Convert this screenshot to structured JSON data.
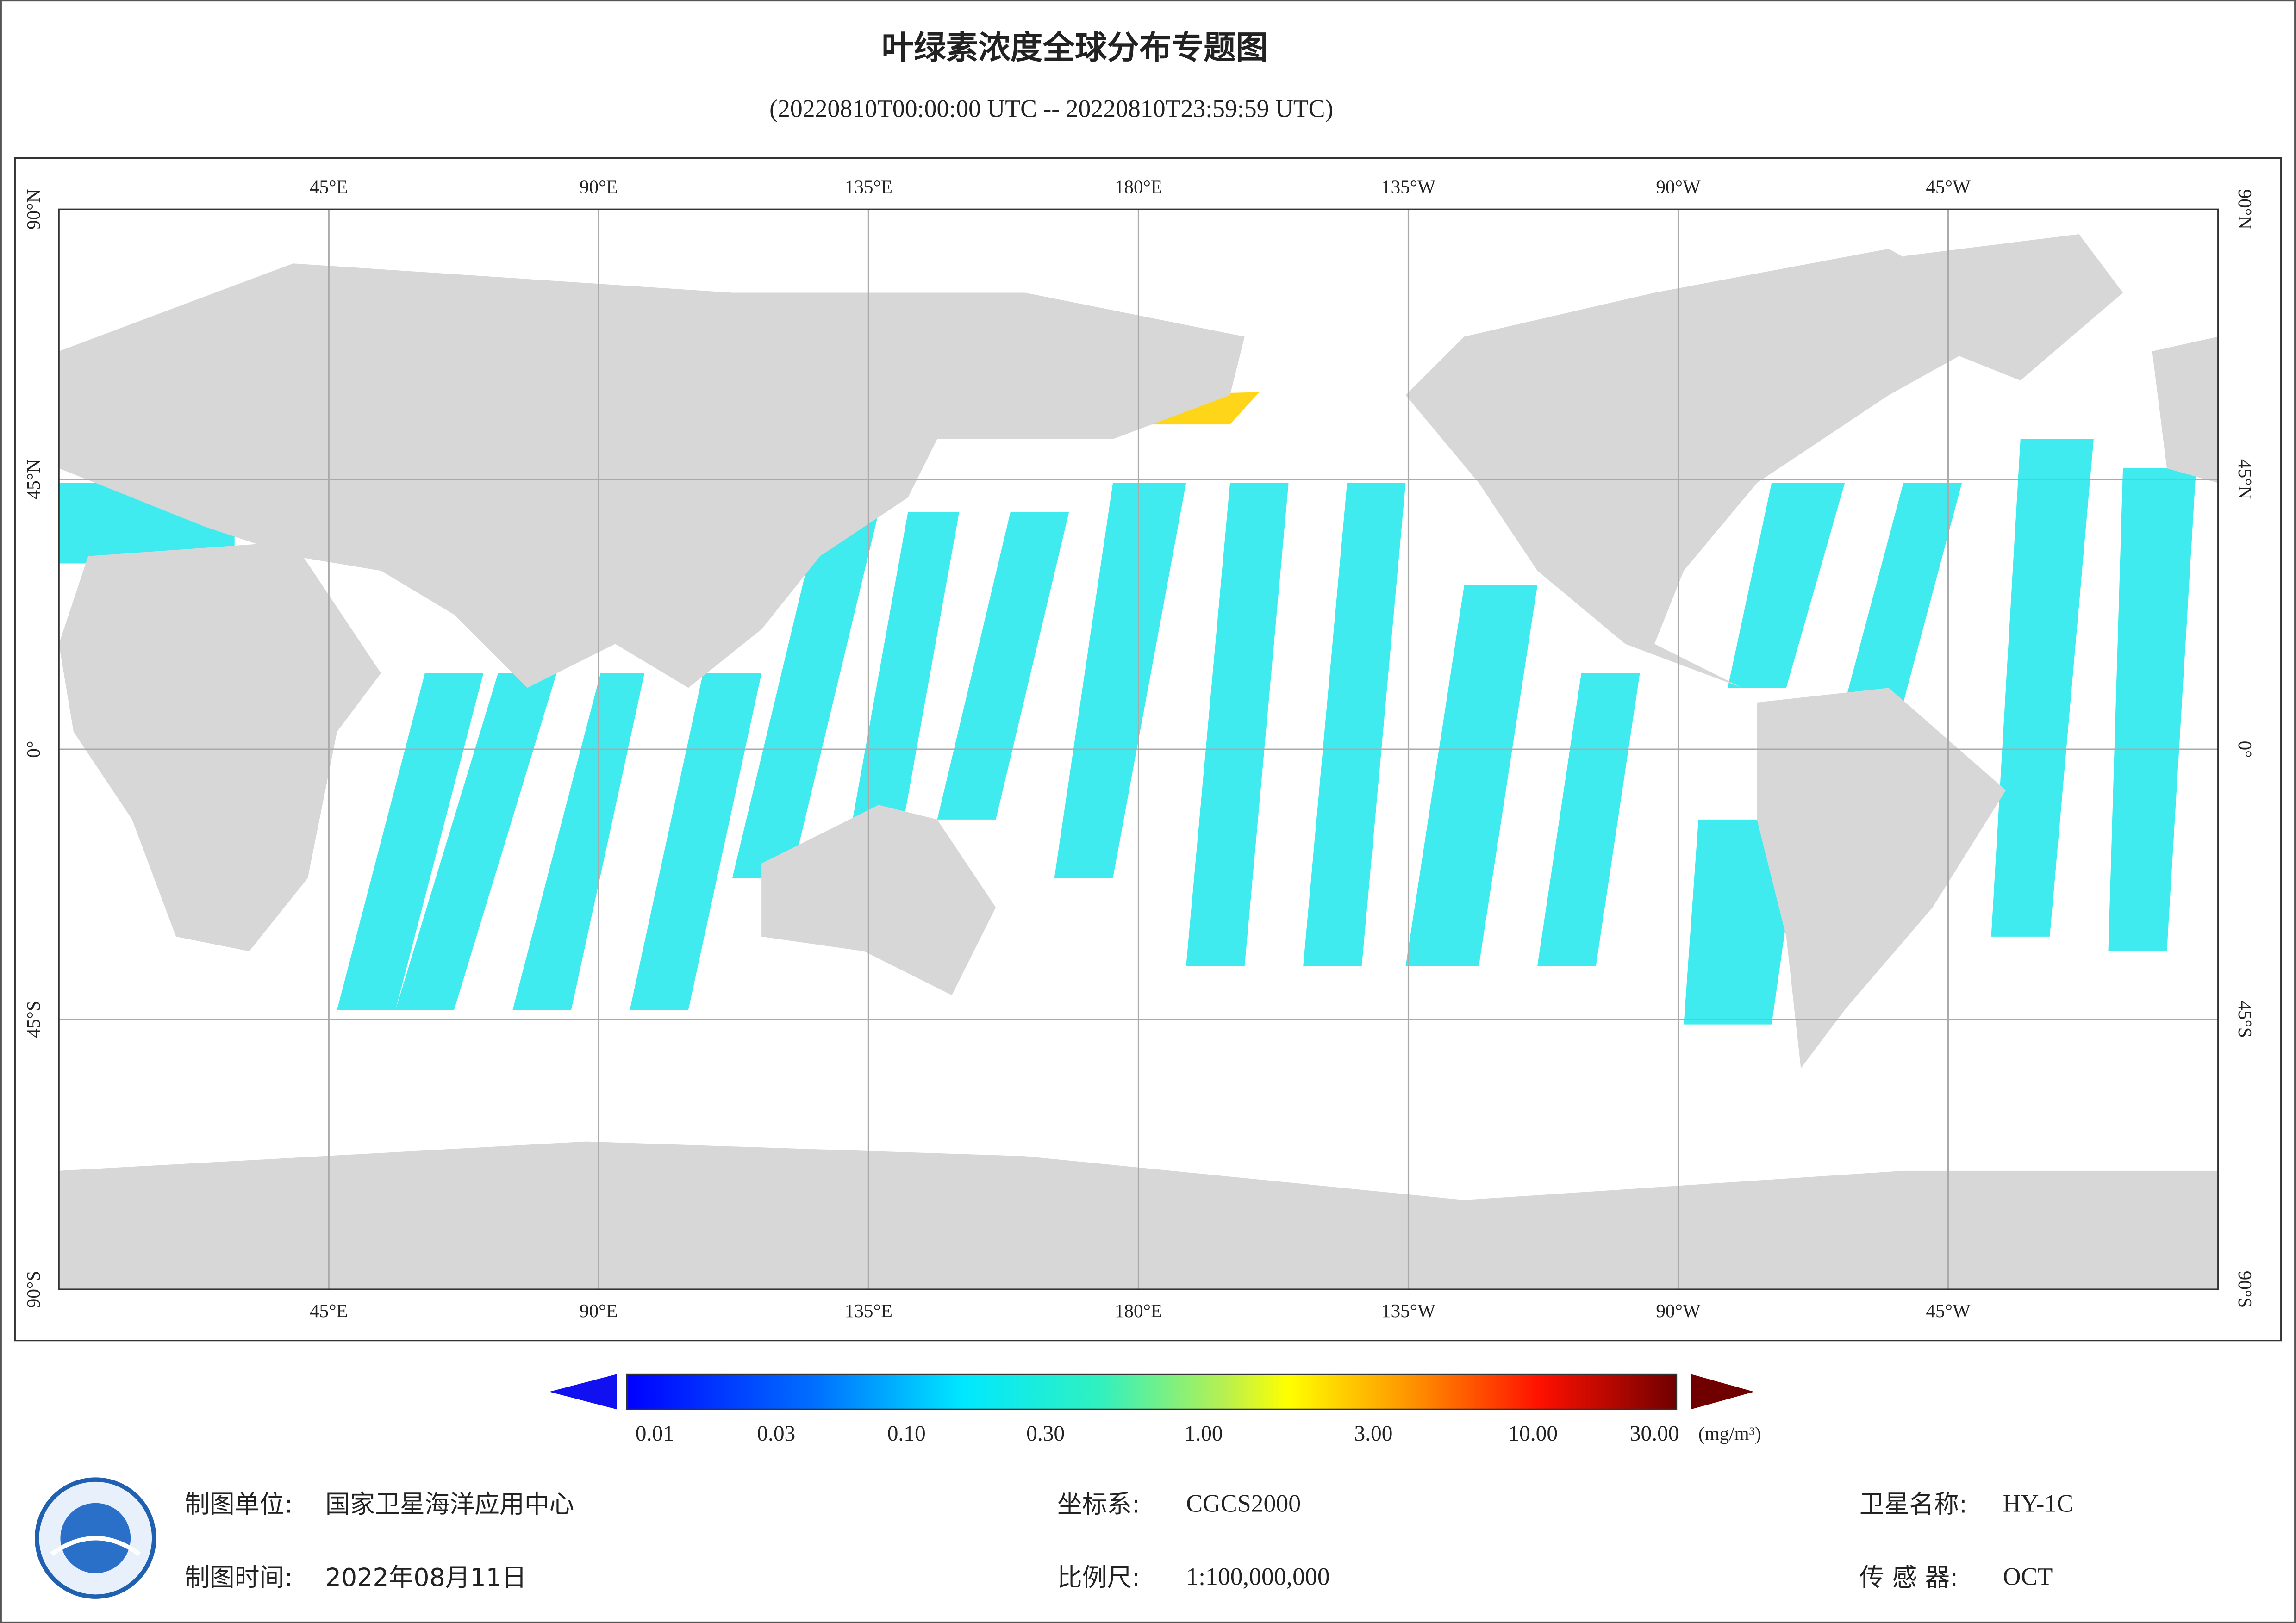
{
  "title": "叶绿素浓度全球分布专题图",
  "subtitle": "(20220810T00:00:00 UTC -- 20220810T23:59:59 UTC)",
  "map": {
    "lon_labels": [
      "45°E",
      "90°E",
      "135°E",
      "180°E",
      "135°W",
      "90°W",
      "45°W"
    ],
    "lat_labels": [
      "90°N",
      "45°N",
      "0°",
      "45°S",
      "90°S"
    ]
  },
  "colorbar": {
    "ticks": [
      "0.01",
      "0.03",
      "0.10",
      "0.30",
      "1.00",
      "3.00",
      "10.00",
      "30.00"
    ],
    "unit": "(mg/m³)"
  },
  "footer": {
    "unit_label": "制图单位:",
    "unit": "国家卫星海洋应用中心",
    "date_label": "制图时间:",
    "date": "2022年08月11日",
    "crs_label": "坐标系:",
    "crs": "CGCS2000",
    "scale_label": "比例尺:",
    "scale": "1:100,000,000",
    "satellite_label": "卫星名称:",
    "satellite": "HY-1C",
    "sensor_label": "传 感 器:",
    "sensor": "OCT"
  }
}
